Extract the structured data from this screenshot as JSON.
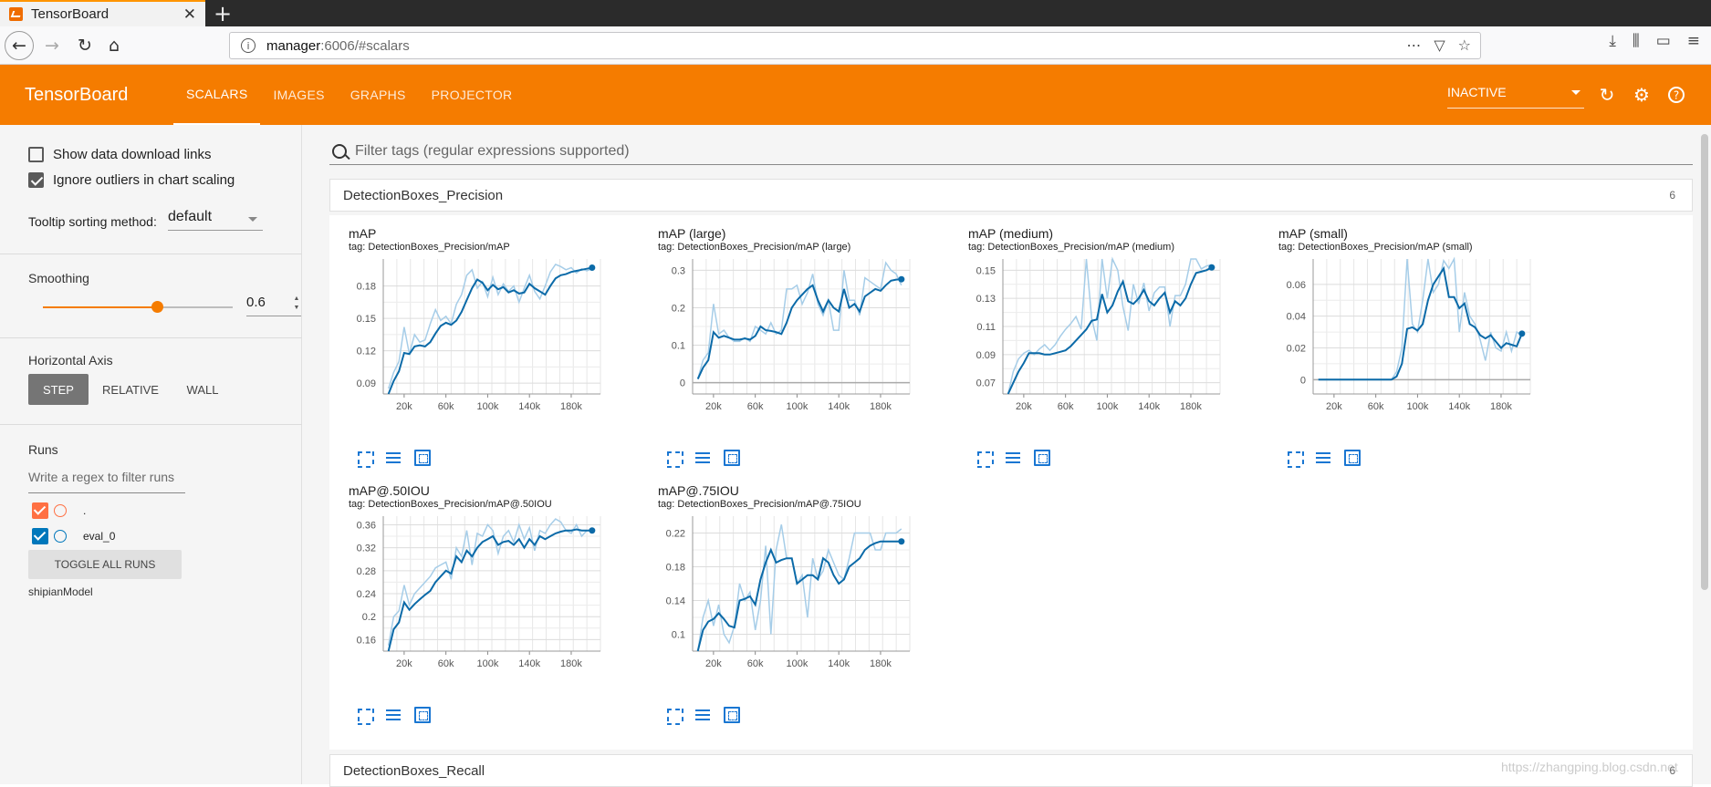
{
  "browser": {
    "tab_title": "TensorBoard",
    "tab_close": "✕",
    "new_tab": "+",
    "url_host": "manager",
    "url_rest": ":6006/#scalars",
    "url_icons": [
      "⋯",
      "▽",
      "☆"
    ],
    "toolbar_icons": [
      "⤓",
      "⫼",
      "▭",
      "≡"
    ]
  },
  "header": {
    "title": "TensorBoard",
    "tabs": [
      {
        "label": "SCALARS",
        "active": true
      },
      {
        "label": "IMAGES",
        "active": false
      },
      {
        "label": "GRAPHS",
        "active": false
      },
      {
        "label": "PROJECTOR",
        "active": false
      }
    ],
    "run_select": "INACTIVE",
    "icons": [
      "refresh-icon",
      "settings-icon",
      "help-icon"
    ]
  },
  "sidebar": {
    "show_download_links": "Show data download links",
    "ignore_outliers": "Ignore outliers in chart scaling",
    "tooltip_sorting_label": "Tooltip sorting method:",
    "tooltip_sorting_value": "default",
    "smoothing_label": "Smoothing",
    "smoothing_value": "0.6",
    "smoothing_fraction": 0.6,
    "horizontal_axis_label": "Horizontal Axis",
    "axis_options": [
      "STEP",
      "RELATIVE",
      "WALL"
    ],
    "runs_label": "Runs",
    "runs_filter_placeholder": "Write a regex to filter runs",
    "runs": [
      {
        "name": ".",
        "color": "#ff7043",
        "checked": true
      },
      {
        "name": "eval_0",
        "color": "#0077bb",
        "checked": true
      }
    ],
    "toggle_all": "TOGGLE ALL RUNS",
    "model_dir": "shipianModel"
  },
  "main": {
    "filter_placeholder": "Filter tags (regular expressions supported)",
    "category1": {
      "name": "DetectionBoxes_Precision",
      "count": "6"
    },
    "category2": {
      "name": "DetectionBoxes_Recall",
      "count": "6"
    }
  },
  "chart_data": [
    {
      "type": "line",
      "title": "mAP",
      "tag": "tag: DetectionBoxes_Precision/mAP",
      "x": [
        5000,
        10000,
        15000,
        20000,
        25000,
        30000,
        35000,
        40000,
        45000,
        50000,
        55000,
        60000,
        65000,
        70000,
        75000,
        80000,
        85000,
        90000,
        95000,
        100000,
        105000,
        110000,
        115000,
        120000,
        125000,
        130000,
        135000,
        140000,
        145000,
        150000,
        155000,
        160000,
        165000,
        170000,
        175000,
        180000,
        185000,
        190000,
        195000,
        200000
      ],
      "yticks": [
        0.09,
        0.12,
        0.15,
        0.18
      ],
      "xticks": [
        "20k",
        "60k",
        "100k",
        "140k",
        "180k"
      ],
      "ylim": [
        0.08,
        0.205
      ],
      "xlim": [
        0,
        208000
      ],
      "series": [
        {
          "role": "raw",
          "values": [
            0.085,
            0.1,
            0.11,
            0.142,
            0.117,
            0.135,
            0.128,
            0.13,
            0.145,
            0.158,
            0.148,
            0.152,
            0.145,
            0.163,
            0.172,
            0.19,
            0.195,
            0.178,
            0.184,
            0.17,
            0.188,
            0.172,
            0.182,
            0.175,
            0.18,
            0.165,
            0.178,
            0.19,
            0.175,
            0.168,
            0.18,
            0.193,
            0.2,
            0.198,
            0.195,
            0.197,
            0.192,
            0.196,
            0.194,
            0.196
          ]
        },
        {
          "role": "smoothed",
          "values": [
            0.08,
            0.092,
            0.101,
            0.118,
            0.117,
            0.124,
            0.125,
            0.124,
            0.128,
            0.136,
            0.143,
            0.146,
            0.144,
            0.148,
            0.156,
            0.167,
            0.178,
            0.186,
            0.183,
            0.176,
            0.181,
            0.177,
            0.179,
            0.174,
            0.176,
            0.173,
            0.174,
            0.182,
            0.178,
            0.175,
            0.172,
            0.18,
            0.187,
            0.19,
            0.191,
            0.193,
            0.194,
            0.195,
            0.196,
            0.197
          ]
        }
      ]
    },
    {
      "type": "line",
      "title": "mAP (large)",
      "tag": "tag: DetectionBoxes_Precision/mAP (large)",
      "yticks": [
        0,
        0.1,
        0.2,
        0.3
      ],
      "xticks": [
        "20k",
        "60k",
        "100k",
        "140k",
        "180k"
      ],
      "ylim": [
        -0.03,
        0.33
      ],
      "xlim": [
        0,
        208000
      ],
      "x": [
        5000,
        10000,
        15000,
        20000,
        25000,
        30000,
        35000,
        40000,
        45000,
        50000,
        55000,
        60000,
        65000,
        70000,
        75000,
        80000,
        85000,
        90000,
        95000,
        100000,
        105000,
        110000,
        115000,
        120000,
        125000,
        130000,
        135000,
        140000,
        145000,
        150000,
        155000,
        160000,
        165000,
        170000,
        175000,
        180000,
        185000,
        190000,
        195000,
        200000
      ],
      "series": [
        {
          "role": "raw",
          "values": [
            0.01,
            0.06,
            0.08,
            0.21,
            0.13,
            0.14,
            0.12,
            0.11,
            0.11,
            0.12,
            0.11,
            0.15,
            0.14,
            0.13,
            0.16,
            0.13,
            0.14,
            0.25,
            0.25,
            0.26,
            0.21,
            0.24,
            0.29,
            0.21,
            0.18,
            0.22,
            0.14,
            0.14,
            0.3,
            0.22,
            0.22,
            0.18,
            0.28,
            0.27,
            0.26,
            0.25,
            0.32,
            0.3,
            0.29,
            0.26
          ]
        },
        {
          "role": "smoothed",
          "values": [
            0.01,
            0.04,
            0.06,
            0.135,
            0.12,
            0.125,
            0.12,
            0.115,
            0.115,
            0.118,
            0.115,
            0.125,
            0.15,
            0.14,
            0.138,
            0.135,
            0.13,
            0.16,
            0.2,
            0.22,
            0.235,
            0.25,
            0.26,
            0.22,
            0.19,
            0.22,
            0.2,
            0.19,
            0.25,
            0.2,
            0.21,
            0.19,
            0.23,
            0.24,
            0.25,
            0.245,
            0.26,
            0.272,
            0.275,
            0.276
          ]
        }
      ]
    },
    {
      "type": "line",
      "title": "mAP (medium)",
      "tag": "tag: DetectionBoxes_Precision/mAP (medium)",
      "yticks": [
        0.07,
        0.09,
        0.11,
        0.13,
        0.15
      ],
      "xticks": [
        "20k",
        "60k",
        "100k",
        "140k",
        "180k"
      ],
      "ylim": [
        0.062,
        0.158
      ],
      "xlim": [
        0,
        208000
      ],
      "x": [
        5000,
        10000,
        15000,
        20000,
        25000,
        30000,
        35000,
        40000,
        45000,
        50000,
        55000,
        60000,
        65000,
        70000,
        75000,
        80000,
        85000,
        90000,
        95000,
        100000,
        105000,
        110000,
        115000,
        120000,
        125000,
        130000,
        135000,
        140000,
        145000,
        150000,
        155000,
        160000,
        165000,
        170000,
        175000,
        180000,
        185000,
        190000,
        195000,
        200000
      ],
      "series": [
        {
          "role": "raw",
          "values": [
            0.062,
            0.078,
            0.087,
            0.091,
            0.093,
            0.09,
            0.094,
            0.097,
            0.093,
            0.097,
            0.103,
            0.108,
            0.112,
            0.117,
            0.108,
            0.158,
            0.116,
            0.1,
            0.162,
            0.13,
            0.158,
            0.15,
            0.124,
            0.107,
            0.14,
            0.126,
            0.141,
            0.121,
            0.134,
            0.138,
            0.138,
            0.11,
            0.132,
            0.132,
            0.14,
            0.158,
            0.165,
            0.151,
            0.153,
            0.154
          ]
        },
        {
          "role": "smoothed",
          "values": [
            0.062,
            0.07,
            0.078,
            0.084,
            0.091,
            0.091,
            0.091,
            0.09,
            0.09,
            0.091,
            0.092,
            0.093,
            0.096,
            0.1,
            0.104,
            0.108,
            0.114,
            0.115,
            0.133,
            0.12,
            0.125,
            0.135,
            0.142,
            0.128,
            0.126,
            0.13,
            0.136,
            0.128,
            0.125,
            0.13,
            0.134,
            0.12,
            0.128,
            0.125,
            0.13,
            0.14,
            0.148,
            0.149,
            0.15,
            0.152
          ]
        }
      ]
    },
    {
      "type": "line",
      "title": "mAP (small)",
      "tag": "tag: DetectionBoxes_Precision/mAP (small)",
      "yticks": [
        0,
        0.02,
        0.04,
        0.06
      ],
      "xticks": [
        "20k",
        "60k",
        "100k",
        "140k",
        "180k"
      ],
      "ylim": [
        -0.009,
        0.076
      ],
      "xlim": [
        0,
        208000
      ],
      "x": [
        5000,
        10000,
        15000,
        20000,
        25000,
        30000,
        35000,
        40000,
        45000,
        50000,
        55000,
        60000,
        65000,
        70000,
        75000,
        80000,
        85000,
        90000,
        95000,
        100000,
        105000,
        110000,
        115000,
        120000,
        125000,
        130000,
        135000,
        140000,
        145000,
        150000,
        155000,
        160000,
        165000,
        170000,
        175000,
        180000,
        185000,
        190000,
        195000,
        200000
      ],
      "series": [
        {
          "role": "raw",
          "values": [
            0,
            0,
            0,
            0,
            0,
            0,
            0,
            0,
            0,
            0,
            0,
            0,
            0,
            0,
            0,
            0.005,
            0.02,
            0.08,
            0.035,
            0.03,
            0.05,
            0.085,
            0.055,
            0.06,
            0.075,
            0.07,
            0.085,
            0.03,
            0.055,
            0.04,
            0.035,
            0.025,
            0.012,
            0.03,
            0.02,
            0.018,
            0.03,
            0.018,
            0.03,
            0.028
          ]
        },
        {
          "role": "smoothed",
          "values": [
            0,
            0,
            0,
            0,
            0,
            0,
            0,
            0,
            0,
            0,
            0,
            0,
            0,
            0,
            0,
            0.002,
            0.01,
            0.032,
            0.033,
            0.031,
            0.035,
            0.05,
            0.06,
            0.065,
            0.07,
            0.052,
            0.052,
            0.045,
            0.048,
            0.035,
            0.033,
            0.028,
            0.026,
            0.028,
            0.024,
            0.02,
            0.023,
            0.022,
            0.021,
            0.029
          ]
        }
      ]
    },
    {
      "type": "line",
      "title": "mAP@.50IOU",
      "tag": "tag: DetectionBoxes_Precision/mAP@.50IOU",
      "yticks": [
        0.16,
        0.2,
        0.24,
        0.28,
        0.32,
        0.36
      ],
      "xticks": [
        "20k",
        "60k",
        "100k",
        "140k",
        "180k"
      ],
      "ylim": [
        0.14,
        0.375
      ],
      "xlim": [
        0,
        208000
      ],
      "x": [
        5000,
        10000,
        15000,
        20000,
        25000,
        30000,
        35000,
        40000,
        45000,
        50000,
        55000,
        60000,
        65000,
        70000,
        75000,
        80000,
        85000,
        90000,
        95000,
        100000,
        105000,
        110000,
        115000,
        120000,
        125000,
        130000,
        135000,
        140000,
        145000,
        150000,
        155000,
        160000,
        165000,
        170000,
        175000,
        180000,
        185000,
        190000,
        195000,
        200000
      ],
      "series": [
        {
          "role": "raw",
          "values": [
            0.15,
            0.2,
            0.21,
            0.255,
            0.22,
            0.24,
            0.25,
            0.26,
            0.27,
            0.285,
            0.29,
            0.295,
            0.265,
            0.32,
            0.305,
            0.35,
            0.29,
            0.345,
            0.34,
            0.36,
            0.35,
            0.31,
            0.34,
            0.35,
            0.33,
            0.36,
            0.335,
            0.355,
            0.315,
            0.35,
            0.345,
            0.36,
            0.37,
            0.365,
            0.35,
            0.345,
            0.36,
            0.34,
            0.35,
            0.35
          ]
        },
        {
          "role": "smoothed",
          "values": [
            0.14,
            0.178,
            0.19,
            0.225,
            0.212,
            0.222,
            0.23,
            0.238,
            0.245,
            0.26,
            0.27,
            0.28,
            0.275,
            0.305,
            0.295,
            0.315,
            0.305,
            0.32,
            0.33,
            0.335,
            0.34,
            0.325,
            0.33,
            0.332,
            0.325,
            0.335,
            0.32,
            0.335,
            0.325,
            0.34,
            0.335,
            0.34,
            0.345,
            0.348,
            0.35,
            0.35,
            0.352,
            0.35,
            0.35,
            0.35
          ]
        }
      ]
    },
    {
      "type": "line",
      "title": "mAP@.75IOU",
      "tag": "tag: DetectionBoxes_Precision/mAP@.75IOU",
      "yticks": [
        0.1,
        0.14,
        0.18,
        0.22
      ],
      "xticks": [
        "20k",
        "60k",
        "100k",
        "140k",
        "180k"
      ],
      "ylim": [
        0.08,
        0.24
      ],
      "xlim": [
        0,
        208000
      ],
      "x": [
        5000,
        10000,
        15000,
        20000,
        25000,
        30000,
        35000,
        40000,
        45000,
        50000,
        55000,
        60000,
        65000,
        70000,
        75000,
        80000,
        85000,
        90000,
        95000,
        100000,
        105000,
        110000,
        115000,
        120000,
        125000,
        130000,
        135000,
        140000,
        145000,
        150000,
        155000,
        160000,
        165000,
        170000,
        175000,
        180000,
        185000,
        190000,
        195000,
        200000
      ],
      "series": [
        {
          "role": "raw",
          "values": [
            0.08,
            0.12,
            0.14,
            0.11,
            0.135,
            0.1,
            0.09,
            0.11,
            0.16,
            0.14,
            0.15,
            0.105,
            0.14,
            0.205,
            0.1,
            0.2,
            0.23,
            0.19,
            0.19,
            0.16,
            0.17,
            0.12,
            0.19,
            0.165,
            0.175,
            0.2,
            0.185,
            0.17,
            0.165,
            0.19,
            0.22,
            0.22,
            0.22,
            0.22,
            0.2,
            0.2,
            0.22,
            0.22,
            0.22,
            0.225
          ]
        },
        {
          "role": "smoothed",
          "values": [
            0.08,
            0.105,
            0.115,
            0.118,
            0.125,
            0.118,
            0.11,
            0.108,
            0.14,
            0.142,
            0.145,
            0.135,
            0.165,
            0.185,
            0.2,
            0.185,
            0.188,
            0.19,
            0.19,
            0.16,
            0.165,
            0.17,
            0.17,
            0.165,
            0.19,
            0.185,
            0.17,
            0.16,
            0.165,
            0.18,
            0.185,
            0.19,
            0.2,
            0.205,
            0.208,
            0.21,
            0.21,
            0.21,
            0.21,
            0.21
          ]
        }
      ]
    }
  ]
}
